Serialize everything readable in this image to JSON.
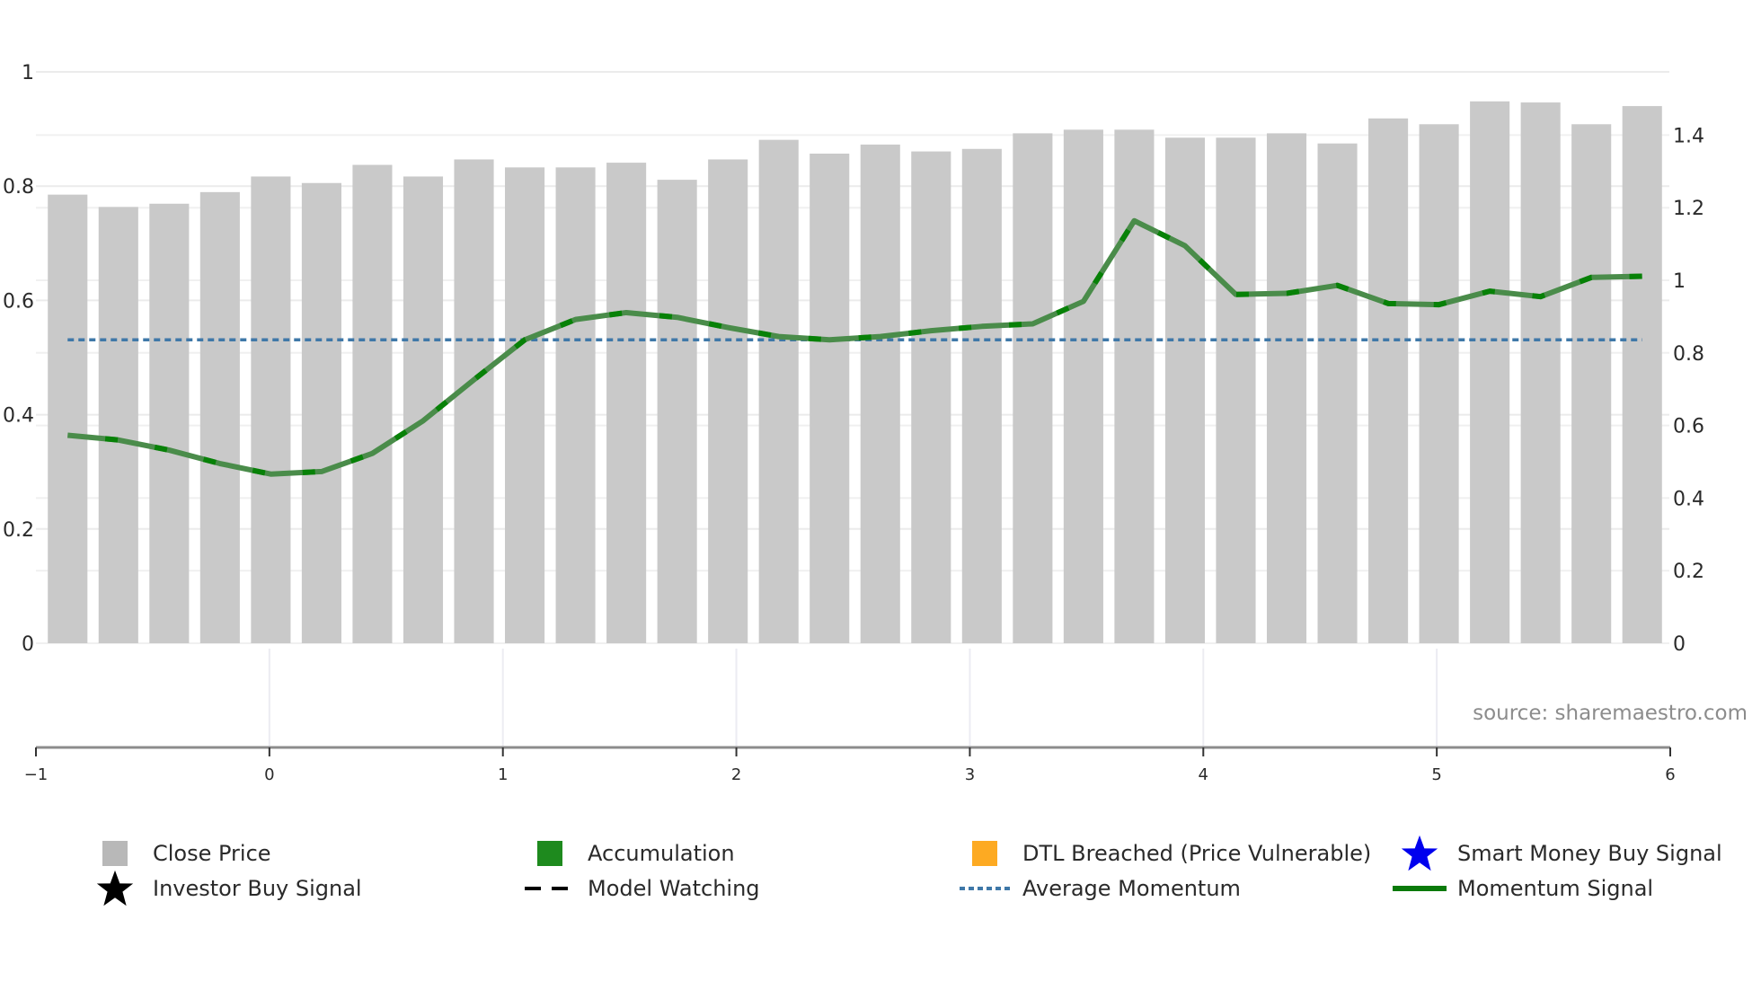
{
  "chart_data": {
    "type": "bar+line",
    "title": "",
    "source_note": "source: sharemaestro.com",
    "x_axis": {
      "range": [
        -1,
        6
      ],
      "ticks": [
        "−1",
        "0",
        "1",
        "2",
        "3",
        "4",
        "5",
        "6"
      ],
      "tick_values": [
        -1,
        0,
        1,
        2,
        3,
        4,
        5,
        6
      ]
    },
    "y_left": {
      "range": [
        0,
        1
      ],
      "ticks": [
        "0",
        "0.2",
        "0.4",
        "0.6",
        "0.8",
        "1"
      ],
      "tick_values": [
        0,
        0.2,
        0.4,
        0.6,
        0.8,
        1
      ]
    },
    "y_right": {
      "range": [
        0,
        1.5
      ],
      "ticks": [
        "0",
        "0.2",
        "0.4",
        "0.6",
        "0.8",
        "1",
        "1.2",
        "1.4"
      ],
      "tick_values": [
        0,
        0.2,
        0.4,
        0.6,
        0.8,
        1,
        1.2,
        1.4
      ]
    },
    "series": [
      {
        "name": "Close Price",
        "type": "bar",
        "axis": "right",
        "color": "#c9c9c9",
        "values": [
          1.236,
          1.202,
          1.211,
          1.243,
          1.286,
          1.268,
          1.318,
          1.286,
          1.333,
          1.311,
          1.311,
          1.324,
          1.277,
          1.333,
          1.387,
          1.349,
          1.374,
          1.355,
          1.362,
          1.405,
          1.415,
          1.415,
          1.393,
          1.393,
          1.405,
          1.377,
          1.446,
          1.43,
          1.493,
          1.49,
          1.43,
          1.48
        ]
      },
      {
        "name": "Momentum Signal",
        "type": "line",
        "axis": "right",
        "color": "#4a8c4a",
        "dash_color": "#008000",
        "values": [
          0.573,
          0.56,
          0.532,
          0.495,
          0.466,
          0.473,
          0.523,
          0.613,
          0.726,
          0.836,
          0.892,
          0.911,
          0.898,
          0.87,
          0.845,
          0.836,
          0.845,
          0.861,
          0.873,
          0.88,
          0.942,
          1.164,
          1.095,
          0.961,
          0.964,
          0.986,
          0.936,
          0.933,
          0.97,
          0.955,
          1.008,
          1.011
        ]
      },
      {
        "name": "Average Momentum",
        "type": "hline",
        "axis": "right",
        "color": "#3f78a8",
        "value": 0.836
      }
    ]
  },
  "legend": {
    "items": [
      {
        "label": "Close Price",
        "symbol": "square",
        "color": "#b8b8b8"
      },
      {
        "label": "Accumulation",
        "symbol": "square",
        "color": "#1e8a1e"
      },
      {
        "label": "DTL Breached (Price Vulnerable)",
        "symbol": "square",
        "color": "#fdaa22"
      },
      {
        "label": "Smart Money Buy Signal",
        "symbol": "star",
        "color": "#0000ee"
      },
      {
        "label": "Investor Buy Signal",
        "symbol": "star",
        "color": "#000000"
      },
      {
        "label": "Model Watching",
        "symbol": "dash",
        "color": "#000000"
      },
      {
        "label": "Average Momentum",
        "symbol": "dotted",
        "color": "#3f78a8"
      },
      {
        "label": "Momentum Signal",
        "symbol": "line",
        "color": "#0a7a0a"
      }
    ]
  }
}
